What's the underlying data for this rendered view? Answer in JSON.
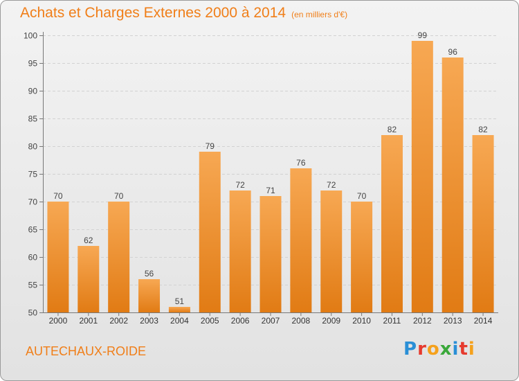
{
  "title": "Achats et Charges Externes 2000 à 2014",
  "subtitle": "(en milliers d'€)",
  "commune": "AUTECHAUX-ROIDE",
  "logo": {
    "letters": [
      "P",
      "r",
      "o",
      "x",
      "i",
      "t",
      "i"
    ],
    "colors": [
      "#2a8fd6",
      "#e63a2e",
      "#f5a11c",
      "#3aa83a",
      "#2a8fd6",
      "#e63a2e",
      "#f5a11c"
    ]
  },
  "colors": {
    "bar_top": "#f7a853",
    "bar_bottom": "#e17b14",
    "text": "#f07e18"
  },
  "chart_data": {
    "type": "bar",
    "title": "Achats et Charges Externes 2000 à 2014",
    "subtitle": "(en milliers d'€)",
    "categories": [
      "2000",
      "2001",
      "2002",
      "2003",
      "2004",
      "2005",
      "2006",
      "2007",
      "2008",
      "2009",
      "2010",
      "2011",
      "2012",
      "2013",
      "2014"
    ],
    "values": [
      70,
      62,
      70,
      56,
      51,
      79,
      72,
      71,
      76,
      72,
      70,
      82,
      99,
      96,
      82
    ],
    "ylim": [
      50,
      100
    ],
    "yticks": [
      50,
      55,
      60,
      65,
      70,
      75,
      80,
      85,
      90,
      95,
      100
    ],
    "grid": true,
    "xlabel": "",
    "ylabel": ""
  }
}
